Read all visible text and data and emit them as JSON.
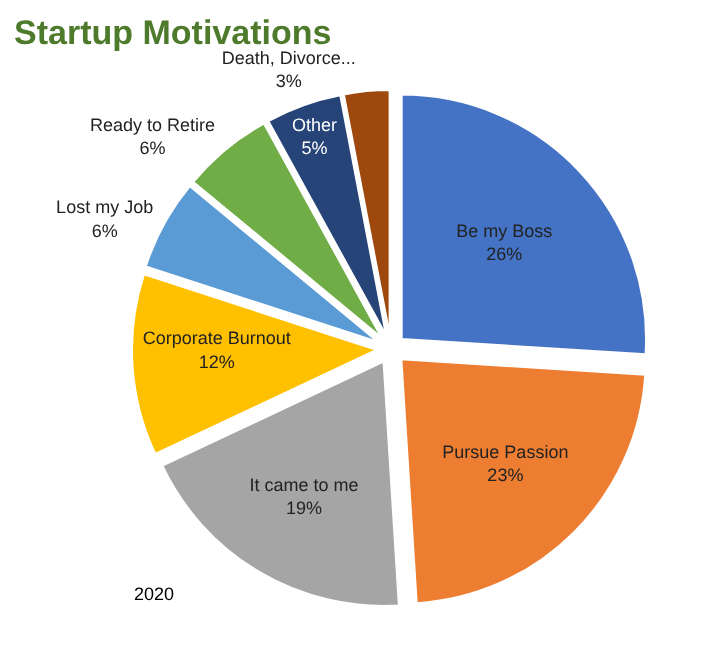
{
  "chart_data": {
    "type": "pie",
    "title": "Startup Motivations",
    "categories": [
      "Be my Boss",
      "Pursue Passion",
      "It came to me",
      "Corporate Burnout",
      "Lost my Job",
      "Ready to Retire",
      "Other",
      "Death, Divorce..."
    ],
    "values": [
      26,
      23,
      19,
      12,
      6,
      6,
      5,
      3
    ],
    "value_labels": [
      "26%",
      "23%",
      "19%",
      "12%",
      "6%",
      "6%",
      "5%",
      "3%"
    ],
    "colors": [
      "#4472c4",
      "#ed7d31",
      "#a5a5a5",
      "#ffc000",
      "#5b9bd5",
      "#70ad47",
      "#264478",
      "#9e480e"
    ],
    "annotations": [
      "2020"
    ],
    "legend": false
  }
}
